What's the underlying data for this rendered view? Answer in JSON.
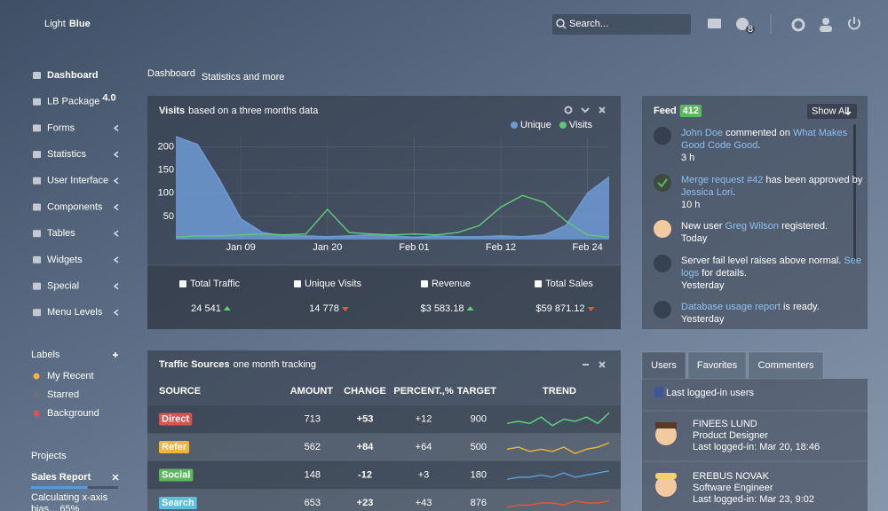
{
  "header": {
    "brand_light": "Light",
    "brand_bold": "Blue",
    "search_placeholder": "Search...",
    "notifications": 8
  },
  "sidebar": {
    "nav": [
      {
        "label": "Dashboard",
        "active": true
      },
      {
        "label": "LB Package",
        "badge": "4.0"
      },
      {
        "label": "Forms",
        "submenu": true
      },
      {
        "label": "Statistics",
        "submenu": true
      },
      {
        "label": "User Interface",
        "submenu": true
      },
      {
        "label": "Components",
        "submenu": true
      },
      {
        "label": "Tables",
        "submenu": true
      },
      {
        "label": "Widgets",
        "submenu": true
      },
      {
        "label": "Special",
        "submenu": true
      },
      {
        "label": "Menu Levels",
        "submenu": true
      }
    ],
    "labels": {
      "title": "Labels",
      "items": [
        {
          "label": "My Recent",
          "color": "#f0b43c"
        },
        {
          "label": "Starred",
          "color": "#6b6f76"
        },
        {
          "label": "Background",
          "color": "#d9534f"
        }
      ]
    },
    "projects": {
      "title": "Projects",
      "items": [
        {
          "name": "Sales Report",
          "progress": 65,
          "lines": [
            "Calculating x-axis",
            "bias... 65%"
          ]
        }
      ]
    }
  },
  "page": {
    "title": "Dashboard",
    "subtitle": "Statistics and more"
  },
  "visits": {
    "title": "Visits",
    "subtitle": "based on a three months data",
    "chart_data": {
      "type": "area",
      "categories": [
        null,
        null,
        null,
        "Jan 09",
        null,
        null,
        null,
        "Jan 20",
        null,
        null,
        null,
        "Feb 01",
        null,
        null,
        null,
        "Feb 12",
        null,
        null,
        null,
        "Feb 24",
        null
      ],
      "series": [
        {
          "name": "Unique",
          "color": "#6e9ad4",
          "style": "area",
          "values": [
            222,
            205,
            130,
            45,
            15,
            8,
            8,
            6,
            8,
            10,
            8,
            5,
            8,
            6,
            6,
            8,
            6,
            10,
            30,
            100,
            135
          ]
        },
        {
          "name": "Visits",
          "color": "#5fc47c",
          "style": "line",
          "values": [
            5,
            8,
            8,
            10,
            12,
            10,
            12,
            65,
            15,
            12,
            10,
            12,
            10,
            15,
            30,
            70,
            95,
            80,
            40,
            10,
            5
          ]
        }
      ],
      "ylim": [
        0,
        220
      ],
      "yticks": [
        50,
        100,
        150,
        200
      ],
      "grid": true
    },
    "stats": [
      {
        "label": "Total Traffic",
        "value": "24 541",
        "trend": "up"
      },
      {
        "label": "Unique Visits",
        "value": "14 778",
        "trend": "down"
      },
      {
        "label": "Revenue",
        "value": "$3 583.18",
        "trend": "up"
      },
      {
        "label": "Total Sales",
        "value": "$59 871.12",
        "trend": "down"
      }
    ]
  },
  "traffic": {
    "title": "Traffic Sources",
    "subtitle": "one month tracking",
    "columns": [
      "SOURCE",
      "AMOUNT",
      "CHANGE",
      "PERCENT.,%",
      "TARGET",
      "TREND"
    ],
    "trend_ylim": [
      0,
      10
    ],
    "rows": [
      {
        "source": "Direct",
        "color": "#d9534f",
        "amount": 713,
        "change": "+53",
        "change_color": "#5cd07a",
        "percent": "+12",
        "target": 900,
        "trend_color": "#5cd07a",
        "trend": [
          3,
          4,
          3,
          6,
          2,
          5,
          4,
          6,
          3,
          8
        ]
      },
      {
        "source": "Refer",
        "color": "#f0b43c",
        "amount": 562,
        "change": "+84",
        "change_color": "#ffffff",
        "percent": "+64",
        "target": 500,
        "trend_color": "#e2b23c",
        "trend": [
          4,
          5,
          3,
          4,
          3,
          5,
          2,
          4,
          5,
          7
        ]
      },
      {
        "source": "Social",
        "color": "#5cb85c",
        "amount": 148,
        "change": "-12",
        "change_color": "#e8543c",
        "percent": "+3",
        "target": 180,
        "trend_color": "#5b9bd5",
        "trend": [
          3,
          4,
          4,
          5,
          4,
          6,
          4,
          5,
          6,
          7
        ]
      },
      {
        "source": "Search",
        "color": "#5bc0de",
        "amount": 653,
        "change": "+23",
        "change_color": "#5cd07a",
        "percent": "+43",
        "target": 876,
        "trend_color": "#e8543c",
        "trend": [
          3,
          4,
          4,
          5,
          5,
          4,
          6,
          5,
          5,
          6
        ]
      }
    ]
  },
  "feed": {
    "title": "Feed",
    "badge": 412,
    "button": "Show All",
    "items": [
      {
        "lines": [
          [
            {
              "text": "John Doe",
              "link": true
            },
            {
              "text": " commented on "
            },
            {
              "text": "What Makes",
              "link": true
            }
          ],
          [
            {
              "text": "Good Code Good",
              "link": true
            },
            {
              "text": "."
            }
          ]
        ],
        "time": "3 h"
      },
      {
        "lines": [
          [
            {
              "text": "Merge request #42",
              "link": true
            },
            {
              "text": " has been approved by"
            }
          ],
          [
            {
              "text": "Jessica Lori",
              "link": true
            },
            {
              "text": "."
            }
          ]
        ],
        "time": "10 h"
      },
      {
        "lines": [
          [
            {
              "text": "New user "
            },
            {
              "text": "Greg Wilson",
              "link": true
            },
            {
              "text": " registered."
            }
          ]
        ],
        "time": "Today"
      },
      {
        "lines": [
          [
            {
              "text": "Server fail level raises above normal. "
            },
            {
              "text": "See",
              "link": true
            }
          ],
          [
            {
              "text": "logs",
              "link": true
            },
            {
              "text": " for details."
            }
          ]
        ],
        "time": "Yesterday"
      },
      {
        "lines": [
          [
            {
              "text": "Database usage report",
              "link": true
            },
            {
              "text": " is ready."
            }
          ]
        ],
        "time": "Yesterday"
      }
    ]
  },
  "users": {
    "tabs": [
      "Users",
      "Favorites",
      "Commenters"
    ],
    "title": "Last logged-in users",
    "items": [
      {
        "name": "FINEES LUND",
        "role": "Product Designer",
        "last": "Last logged-in: Mar 20, 18:46"
      },
      {
        "name": "EREBUS NOVAK",
        "role": "Software Engineer",
        "last": "Last logged-in: Mar 23, 9:02"
      }
    ]
  }
}
